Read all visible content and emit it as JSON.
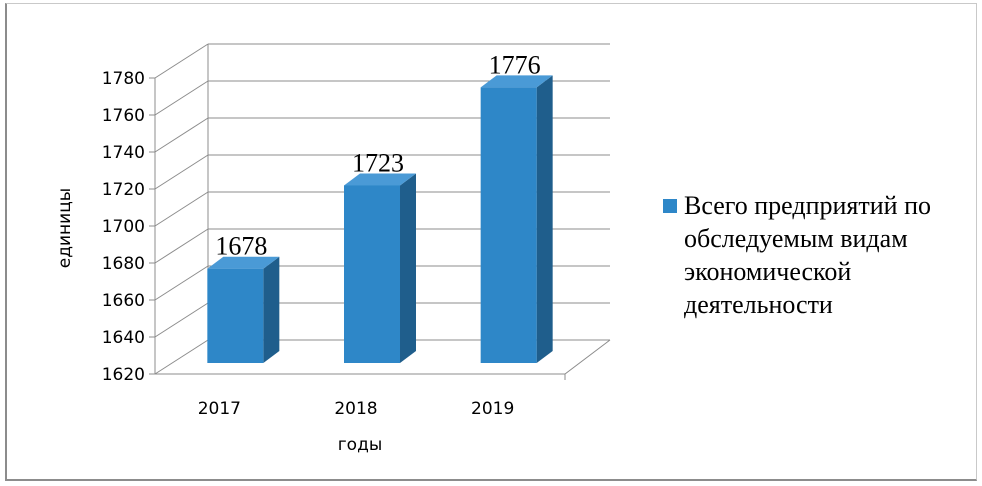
{
  "chart_data": {
    "type": "bar",
    "style": "3d-column",
    "categories": [
      "2017",
      "2018",
      "2019"
    ],
    "series": [
      {
        "name": "Всего предприятий по обследуемым видам экономической деятельности",
        "values": [
          1678,
          1723,
          1776
        ],
        "color": "#2e87c8"
      }
    ],
    "data_labels": [
      "1678",
      "1723",
      "1776"
    ],
    "xlabel": "годы",
    "ylabel": "единицы",
    "ylim": [
      1620,
      1780
    ],
    "yticks": [
      1620,
      1640,
      1660,
      1680,
      1700,
      1720,
      1740,
      1760,
      1780
    ],
    "grid": true,
    "legend_position": "right",
    "legend_lines": [
      "Всего предприятий по",
      "обследуемым видам",
      "экономической",
      "деятельности"
    ]
  }
}
